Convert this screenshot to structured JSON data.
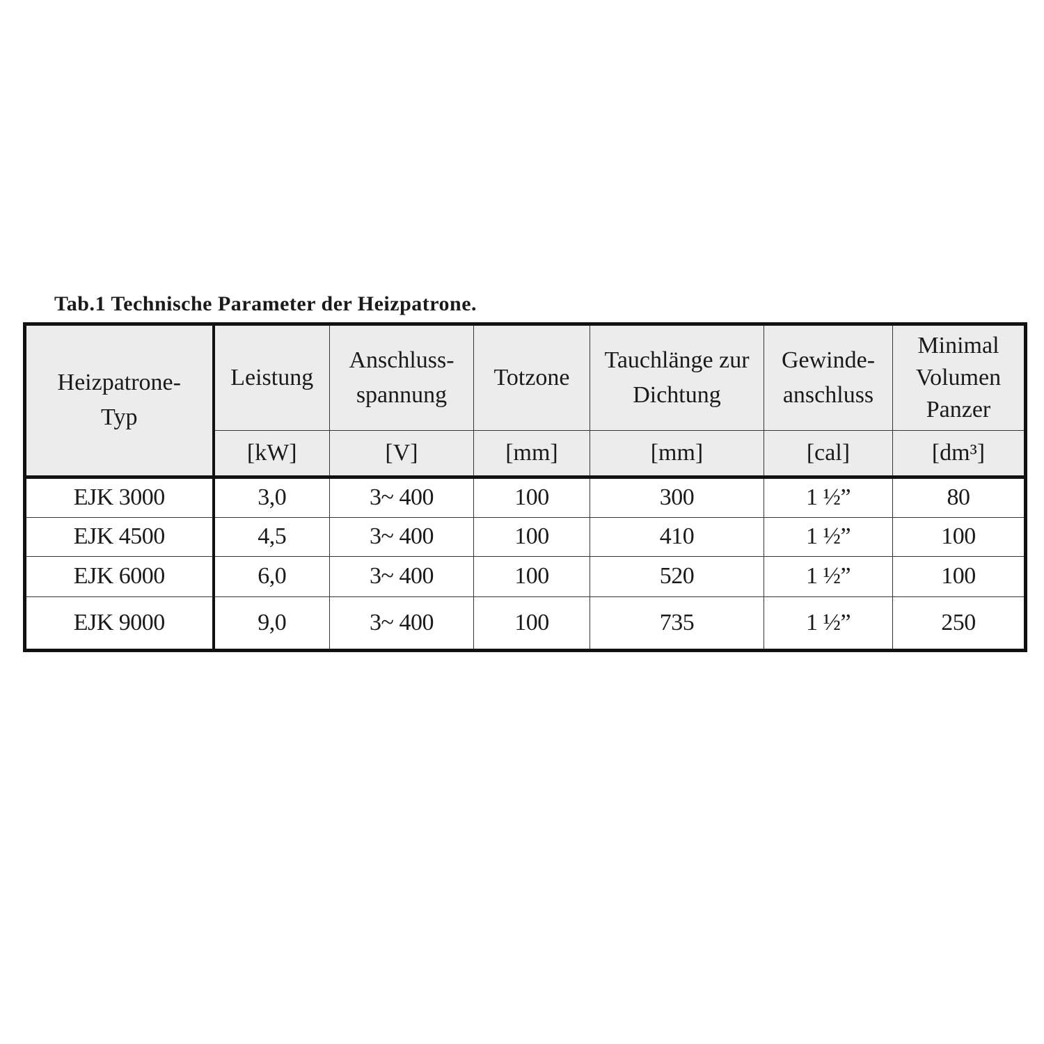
{
  "caption": "Tab.1 Technische Parameter der Heizpatrone.",
  "table": {
    "type_header": [
      "Heizpatrone-",
      "Typ"
    ],
    "headers": [
      {
        "label": [
          "Leistung"
        ],
        "unit": "[kW]"
      },
      {
        "label": [
          "Anschluss-",
          "spannung"
        ],
        "unit": "[V]"
      },
      {
        "label": [
          "Totzone"
        ],
        "unit": "[mm]"
      },
      {
        "label": [
          "Tauchlänge zur",
          "Dichtung"
        ],
        "unit": "[mm]"
      },
      {
        "label": [
          "Gewinde-",
          "anschluss"
        ],
        "unit": "[cal]"
      },
      {
        "label": [
          "Minimal",
          "Volumen",
          "Panzer"
        ],
        "unit": "[dm³]"
      }
    ],
    "rows": [
      [
        "EJK  3000",
        "3,0",
        "3~ 400",
        "100",
        "300",
        "1 ½”",
        "80"
      ],
      [
        "EJK  4500",
        "4,5",
        "3~ 400",
        "100",
        "410",
        "1 ½”",
        "100"
      ],
      [
        "EJK  6000",
        "6,0",
        "3~ 400",
        "100",
        "520",
        "1 ½”",
        "100"
      ],
      [
        "EJK  9000",
        "9,0",
        "3~ 400",
        "100",
        "735",
        "1 ½”",
        "250"
      ]
    ]
  }
}
